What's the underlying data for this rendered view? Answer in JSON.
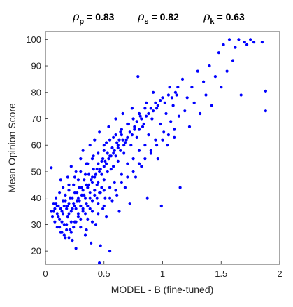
{
  "chart_data": {
    "type": "scatter",
    "xlabel": "MODEL - B (fine-tuned)",
    "ylabel": "Mean Opinion Score",
    "xlim": [
      0,
      2
    ],
    "ylim": [
      15,
      103
    ],
    "x_ticks": [
      "0",
      "0.5",
      "1",
      "1.5",
      "2"
    ],
    "y_ticks": [
      "20",
      "30",
      "40",
      "50",
      "60",
      "70",
      "80",
      "90",
      "100"
    ],
    "point_color": "#0000ff",
    "correlations": [
      {
        "symbol": "ρ",
        "sub": "p",
        "value": "= 0.83"
      },
      {
        "symbol": "ρ",
        "sub": "s",
        "value": "= 0.82"
      },
      {
        "symbol": "ρ",
        "sub": "k",
        "value": "= 0.63"
      }
    ],
    "points": [
      [
        0.05,
        51.5
      ],
      [
        0.05,
        35
      ],
      [
        0.06,
        33
      ],
      [
        0.07,
        38
      ],
      [
        0.08,
        31
      ],
      [
        0.08,
        36
      ],
      [
        0.09,
        40
      ],
      [
        0.1,
        34
      ],
      [
        0.1,
        29
      ],
      [
        0.11,
        37
      ],
      [
        0.12,
        42
      ],
      [
        0.12,
        32
      ],
      [
        0.13,
        47
      ],
      [
        0.13,
        27
      ],
      [
        0.14,
        35
      ],
      [
        0.15,
        39
      ],
      [
        0.15,
        44
      ],
      [
        0.16,
        30
      ],
      [
        0.17,
        41
      ],
      [
        0.17,
        25
      ],
      [
        0.18,
        36
      ],
      [
        0.19,
        48
      ],
      [
        0.19,
        33
      ],
      [
        0.2,
        38
      ],
      [
        0.2,
        43
      ],
      [
        0.21,
        28
      ],
      [
        0.22,
        52
      ],
      [
        0.22,
        35
      ],
      [
        0.23,
        40
      ],
      [
        0.23,
        24
      ],
      [
        0.24,
        45
      ],
      [
        0.25,
        31
      ],
      [
        0.25,
        37
      ],
      [
        0.26,
        50
      ],
      [
        0.26,
        21
      ],
      [
        0.27,
        42
      ],
      [
        0.28,
        34
      ],
      [
        0.28,
        47
      ],
      [
        0.29,
        39
      ],
      [
        0.3,
        55
      ],
      [
        0.3,
        29
      ],
      [
        0.31,
        44
      ],
      [
        0.32,
        36
      ],
      [
        0.32,
        58
      ],
      [
        0.33,
        41
      ],
      [
        0.34,
        26
      ],
      [
        0.34,
        49
      ],
      [
        0.35,
        38
      ],
      [
        0.36,
        53
      ],
      [
        0.36,
        32
      ],
      [
        0.37,
        45
      ],
      [
        0.38,
        60
      ],
      [
        0.38,
        40
      ],
      [
        0.39,
        23
      ],
      [
        0.4,
        48
      ],
      [
        0.4,
        35
      ],
      [
        0.41,
        56
      ],
      [
        0.42,
        43
      ],
      [
        0.42,
        62
      ],
      [
        0.43,
        30
      ],
      [
        0.44,
        51
      ],
      [
        0.45,
        38
      ],
      [
        0.45,
        46
      ],
      [
        0.46,
        65
      ],
      [
        0.47,
        42
      ],
      [
        0.47,
        22
      ],
      [
        0.48,
        54
      ],
      [
        0.49,
        36
      ],
      [
        0.5,
        58
      ],
      [
        0.5,
        47
      ],
      [
        0.51,
        40
      ],
      [
        0.52,
        61
      ],
      [
        0.52,
        33
      ],
      [
        0.53,
        50
      ],
      [
        0.54,
        67
      ],
      [
        0.55,
        44
      ],
      [
        0.55,
        20
      ],
      [
        0.56,
        56
      ],
      [
        0.57,
        39
      ],
      [
        0.58,
        63
      ],
      [
        0.58,
        52
      ],
      [
        0.59,
        46
      ],
      [
        0.6,
        70
      ],
      [
        0.61,
        41
      ],
      [
        0.62,
        59
      ],
      [
        0.62,
        54
      ],
      [
        0.63,
        35
      ],
      [
        0.64,
        65
      ],
      [
        0.65,
        49
      ],
      [
        0.66,
        72
      ],
      [
        0.67,
        57
      ],
      [
        0.68,
        44
      ],
      [
        0.69,
        62
      ],
      [
        0.7,
        53
      ],
      [
        0.71,
        68
      ],
      [
        0.72,
        38
      ],
      [
        0.73,
        60
      ],
      [
        0.74,
        74
      ],
      [
        0.75,
        55
      ],
      [
        0.76,
        66
      ],
      [
        0.77,
        48
      ],
      [
        0.78,
        63
      ],
      [
        0.79,
        86
      ],
      [
        0.8,
        58
      ],
      [
        0.81,
        71
      ],
      [
        0.82,
        52
      ],
      [
        0.83,
        67
      ],
      [
        0.85,
        60
      ],
      [
        0.86,
        76
      ],
      [
        0.87,
        40
      ],
      [
        0.88,
        64
      ],
      [
        0.9,
        57
      ],
      [
        0.91,
        70
      ],
      [
        0.92,
        80
      ],
      [
        0.94,
        62
      ],
      [
        0.95,
        74
      ],
      [
        0.96,
        55
      ],
      [
        0.98,
        68
      ],
      [
        0.99,
        37
      ],
      [
        1.0,
        78
      ],
      [
        1.01,
        65
      ],
      [
        1.03,
        72
      ],
      [
        1.04,
        60
      ],
      [
        1.06,
        82
      ],
      [
        1.07,
        69
      ],
      [
        1.09,
        75
      ],
      [
        1.1,
        63
      ],
      [
        1.12,
        79
      ],
      [
        1.14,
        71
      ],
      [
        1.15,
        44
      ],
      [
        1.17,
        85
      ],
      [
        1.19,
        73
      ],
      [
        1.21,
        78
      ],
      [
        1.23,
        67
      ],
      [
        1.25,
        82
      ],
      [
        1.27,
        76
      ],
      [
        1.3,
        88
      ],
      [
        1.32,
        72
      ],
      [
        1.35,
        84
      ],
      [
        1.37,
        79
      ],
      [
        1.4,
        90
      ],
      [
        1.42,
        75
      ],
      [
        1.45,
        86
      ],
      [
        1.48,
        95
      ],
      [
        1.5,
        82
      ],
      [
        1.52,
        98
      ],
      [
        1.55,
        88
      ],
      [
        1.57,
        100
      ],
      [
        1.6,
        92
      ],
      [
        1.62,
        97
      ],
      [
        1.65,
        100
      ],
      [
        1.67,
        79
      ],
      [
        1.7,
        99
      ],
      [
        1.72,
        98
      ],
      [
        1.75,
        100
      ],
      [
        1.78,
        99
      ],
      [
        1.85,
        99
      ],
      [
        1.88,
        80.5
      ],
      [
        1.88,
        73
      ],
      [
        0.46,
        15.5
      ],
      [
        0.09,
        38
      ],
      [
        0.11,
        33
      ],
      [
        0.14,
        31
      ],
      [
        0.16,
        37
      ],
      [
        0.18,
        30
      ],
      [
        0.2,
        34
      ],
      [
        0.22,
        31
      ],
      [
        0.24,
        38
      ],
      [
        0.26,
        36
      ],
      [
        0.28,
        40
      ],
      [
        0.3,
        37
      ],
      [
        0.32,
        43
      ],
      [
        0.34,
        40
      ],
      [
        0.36,
        44
      ],
      [
        0.38,
        42
      ],
      [
        0.4,
        46
      ],
      [
        0.42,
        48
      ],
      [
        0.44,
        45
      ],
      [
        0.46,
        50
      ],
      [
        0.48,
        49
      ],
      [
        0.5,
        52
      ],
      [
        0.52,
        53
      ],
      [
        0.54,
        55
      ],
      [
        0.56,
        51
      ],
      [
        0.58,
        57
      ],
      [
        0.6,
        56
      ],
      [
        0.62,
        60
      ],
      [
        0.64,
        58
      ],
      [
        0.66,
        62
      ],
      [
        0.68,
        61
      ],
      [
        0.7,
        63
      ],
      [
        0.72,
        65
      ],
      [
        0.74,
        64
      ],
      [
        0.76,
        67
      ],
      [
        0.78,
        69
      ],
      [
        0.8,
        66
      ],
      [
        0.82,
        70
      ],
      [
        0.84,
        68
      ],
      [
        0.86,
        71
      ],
      [
        0.88,
        72
      ],
      [
        0.9,
        74
      ],
      [
        0.92,
        73
      ],
      [
        0.94,
        76
      ],
      [
        0.96,
        75
      ],
      [
        0.98,
        77
      ],
      [
        1.02,
        76
      ],
      [
        1.05,
        79
      ],
      [
        1.08,
        78
      ],
      [
        1.11,
        80
      ],
      [
        1.13,
        82
      ],
      [
        0.07,
        35
      ],
      [
        0.1,
        37
      ],
      [
        0.13,
        36
      ],
      [
        0.15,
        34
      ],
      [
        0.17,
        39
      ],
      [
        0.19,
        37
      ],
      [
        0.21,
        40
      ],
      [
        0.23,
        36
      ],
      [
        0.25,
        42
      ],
      [
        0.27,
        39
      ],
      [
        0.29,
        44
      ],
      [
        0.31,
        41
      ],
      [
        0.33,
        47
      ],
      [
        0.35,
        45
      ],
      [
        0.37,
        49
      ],
      [
        0.39,
        47
      ],
      [
        0.41,
        51
      ],
      [
        0.43,
        49
      ],
      [
        0.45,
        53
      ],
      [
        0.47,
        51
      ],
      [
        0.49,
        55
      ],
      [
        0.51,
        54
      ],
      [
        0.53,
        57
      ],
      [
        0.55,
        56
      ],
      [
        0.57,
        59
      ],
      [
        0.59,
        58
      ],
      [
        0.61,
        61
      ],
      [
        0.63,
        62
      ],
      [
        0.65,
        64
      ],
      [
        0.67,
        60
      ],
      [
        0.12,
        29
      ],
      [
        0.14,
        27
      ],
      [
        0.16,
        26
      ],
      [
        0.18,
        28
      ],
      [
        0.2,
        25
      ],
      [
        0.22,
        27
      ],
      [
        0.24,
        29
      ],
      [
        0.26,
        31
      ],
      [
        0.28,
        33
      ],
      [
        0.3,
        32
      ],
      [
        0.32,
        35
      ],
      [
        0.34,
        34
      ],
      [
        0.36,
        37
      ],
      [
        0.38,
        36
      ],
      [
        0.4,
        39
      ],
      [
        0.42,
        41
      ],
      [
        0.44,
        40
      ],
      [
        0.46,
        42
      ],
      [
        0.48,
        44
      ],
      [
        0.5,
        43
      ],
      [
        0.35,
        28
      ],
      [
        0.4,
        31
      ],
      [
        0.45,
        34
      ],
      [
        0.5,
        37
      ],
      [
        0.55,
        40
      ],
      [
        0.6,
        43
      ],
      [
        0.65,
        46
      ],
      [
        0.7,
        48
      ],
      [
        0.75,
        50
      ],
      [
        0.8,
        53
      ],
      [
        0.85,
        55
      ],
      [
        0.9,
        58
      ],
      [
        0.95,
        60
      ],
      [
        1.0,
        62
      ],
      [
        1.05,
        64
      ],
      [
        1.1,
        66
      ],
      [
        0.2,
        45
      ],
      [
        0.25,
        48
      ],
      [
        0.3,
        50
      ],
      [
        0.35,
        53
      ],
      [
        0.4,
        55
      ],
      [
        0.45,
        57
      ],
      [
        0.5,
        60
      ],
      [
        0.55,
        62
      ],
      [
        0.6,
        64
      ],
      [
        0.65,
        66
      ],
      [
        0.7,
        68
      ],
      [
        0.75,
        70
      ],
      [
        0.8,
        72
      ],
      [
        0.85,
        74
      ]
    ]
  }
}
